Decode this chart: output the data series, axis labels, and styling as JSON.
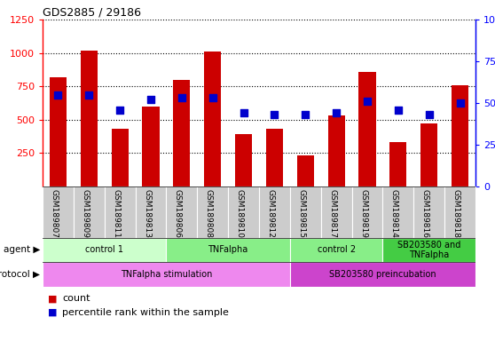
{
  "title": "GDS2885 / 29186",
  "samples": [
    "GSM189807",
    "GSM189809",
    "GSM189811",
    "GSM189813",
    "GSM189806",
    "GSM189808",
    "GSM189810",
    "GSM189812",
    "GSM189815",
    "GSM189817",
    "GSM189819",
    "GSM189814",
    "GSM189816",
    "GSM189818"
  ],
  "counts": [
    820,
    1020,
    430,
    600,
    800,
    1010,
    390,
    430,
    230,
    530,
    860,
    330,
    470,
    760
  ],
  "percentile_ranks": [
    55,
    55,
    46,
    52,
    53,
    53,
    44,
    43,
    43,
    44,
    51,
    46,
    43,
    50
  ],
  "ylim_left": [
    0,
    1250
  ],
  "ylim_right": [
    0,
    100
  ],
  "yticks_left": [
    250,
    500,
    750,
    1000,
    1250
  ],
  "yticks_right": [
    0,
    25,
    50,
    75,
    100
  ],
  "bar_color": "#cc0000",
  "dot_color": "#0000cc",
  "agent_colors": [
    "#ccffcc",
    "#88ee88",
    "#88ee88",
    "#44cc44"
  ],
  "agent_groups": [
    {
      "label": "control 1",
      "start": 0,
      "end": 4
    },
    {
      "label": "TNFalpha",
      "start": 4,
      "end": 8
    },
    {
      "label": "control 2",
      "start": 8,
      "end": 11
    },
    {
      "label": "SB203580 and\nTNFalpha",
      "start": 11,
      "end": 14
    }
  ],
  "protocol_colors": [
    "#ee88ee",
    "#cc44cc"
  ],
  "protocol_groups": [
    {
      "label": "TNFalpha stimulation",
      "start": 0,
      "end": 8
    },
    {
      "label": "SB203580 preincubation",
      "start": 8,
      "end": 14
    }
  ],
  "tick_bg_color": "#cccccc",
  "legend_count_color": "#cc0000",
  "legend_pct_color": "#0000cc",
  "fig_w": 5.58,
  "fig_h": 3.84,
  "dpi": 100
}
